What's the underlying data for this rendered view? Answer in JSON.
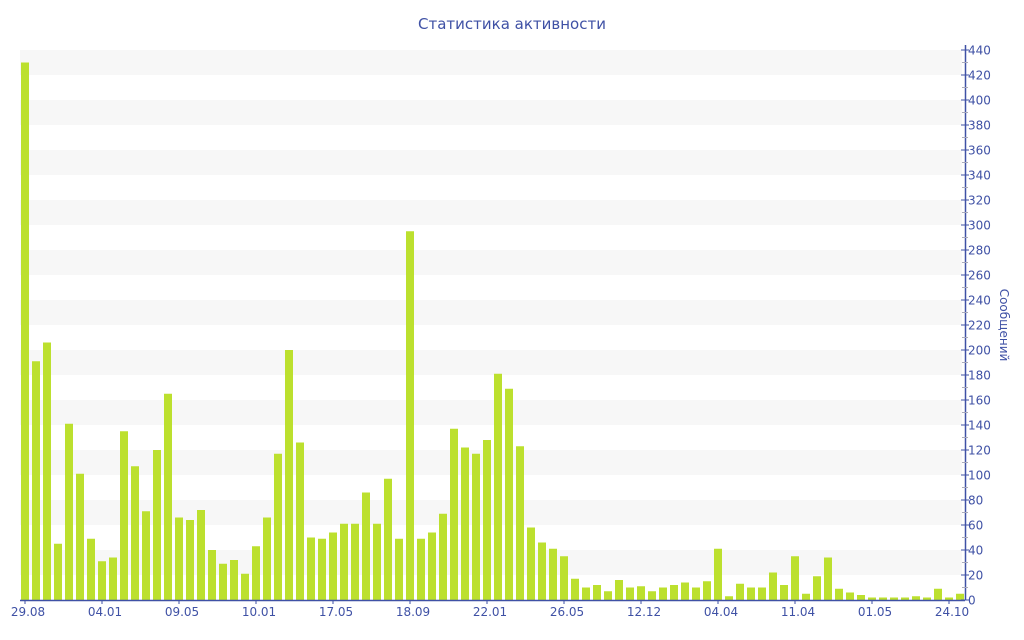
{
  "chart_data": {
    "type": "bar",
    "title": "Статистика активности",
    "ylabel": "Сообщений",
    "xlabel": "",
    "ylim": [
      0,
      440
    ],
    "y_ticks": [
      0,
      20,
      40,
      60,
      80,
      100,
      120,
      140,
      160,
      180,
      200,
      220,
      240,
      260,
      280,
      300,
      320,
      340,
      360,
      380,
      400,
      420,
      440
    ],
    "y_axis_side": "right",
    "grid": "alternating horizontal bands every 20",
    "x_tick_labels": [
      {
        "index": 0,
        "label": "29.08"
      },
      {
        "index": 7,
        "label": "04.01"
      },
      {
        "index": 14,
        "label": "09.05"
      },
      {
        "index": 21,
        "label": "10.01"
      },
      {
        "index": 28,
        "label": "17.05"
      },
      {
        "index": 35,
        "label": "18.09"
      },
      {
        "index": 42,
        "label": "22.01"
      },
      {
        "index": 49,
        "label": "26.05"
      },
      {
        "index": 56,
        "label": "12.12"
      },
      {
        "index": 63,
        "label": "04.04"
      },
      {
        "index": 70,
        "label": "11.04"
      },
      {
        "index": 77,
        "label": "01.05"
      },
      {
        "index": 84,
        "label": "24.10"
      }
    ],
    "values": [
      430,
      191,
      206,
      45,
      141,
      101,
      49,
      31,
      34,
      135,
      107,
      71,
      120,
      165,
      66,
      64,
      72,
      40,
      29,
      32,
      21,
      43,
      66,
      117,
      200,
      126,
      50,
      49,
      54,
      61,
      61,
      86,
      61,
      97,
      49,
      295,
      49,
      54,
      69,
      137,
      122,
      117,
      128,
      181,
      169,
      123,
      58,
      46,
      41,
      35,
      17,
      10,
      12,
      7,
      16,
      10,
      11,
      7,
      10,
      12,
      14,
      10,
      15,
      41,
      3,
      13,
      10,
      10,
      22,
      12,
      35,
      5,
      19,
      34,
      9,
      6,
      4,
      2,
      2,
      2,
      2,
      3,
      2,
      9,
      2,
      5
    ],
    "colors": {
      "bar": "#bce02e",
      "axis": "#3f51a5",
      "band": "#f7f7f7"
    }
  }
}
